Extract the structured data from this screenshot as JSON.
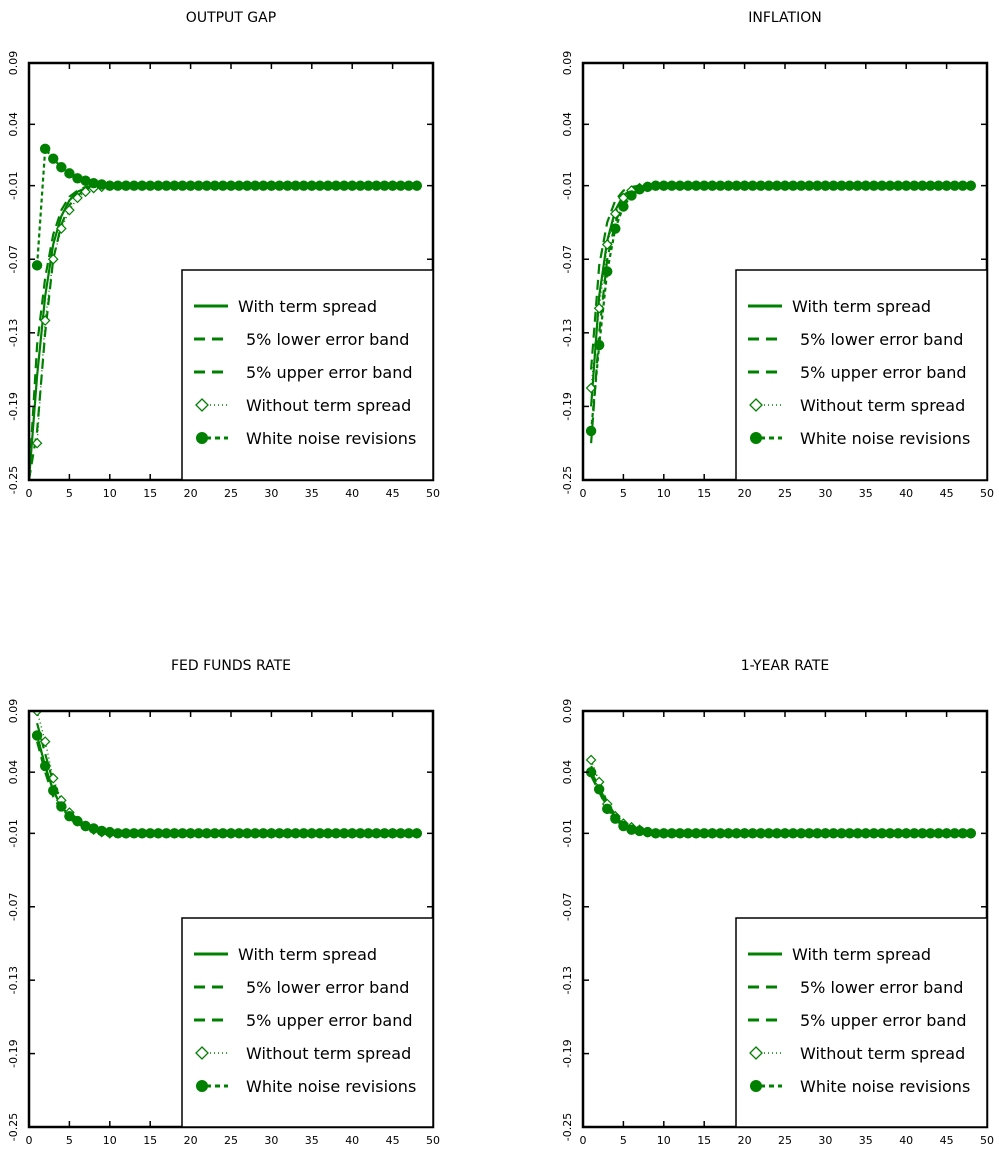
{
  "colors": {
    "series": "#008000",
    "axis": "#000000",
    "background": "#ffffff"
  },
  "chart_data": [
    {
      "type": "line",
      "title": "OUTPUT GAP",
      "xlim": [
        0,
        50
      ],
      "ylim": [
        -0.25,
        0.09
      ],
      "xticks": [
        "0",
        "5",
        "10",
        "15",
        "20",
        "25",
        "30",
        "35",
        "40",
        "45",
        "50"
      ],
      "yticks": [
        "-0.25",
        "-0.19",
        "-0.13",
        "-0.07",
        "-0.01",
        "0.04",
        "0.09"
      ],
      "legend": [
        "With term spread",
        "5% lower error band",
        "5% upper error band",
        "Without term spread",
        "White noise revisions"
      ],
      "legend_position": "lower-right",
      "series": [
        {
          "name": "With term spread",
          "x": [
            0,
            1,
            2,
            3,
            4,
            5,
            6,
            7,
            8,
            9,
            10,
            48
          ],
          "y": [
            -0.25,
            -0.165,
            -0.1,
            -0.058,
            -0.035,
            -0.022,
            -0.015,
            -0.012,
            -0.011,
            -0.01,
            -0.01,
            -0.01
          ]
        },
        {
          "name": "5% lower error band",
          "x": [
            0,
            1,
            2,
            3,
            4,
            5,
            6,
            7,
            8,
            9,
            10,
            48
          ],
          "y": [
            -0.25,
            -0.21,
            -0.13,
            -0.07,
            -0.042,
            -0.026,
            -0.018,
            -0.013,
            -0.011,
            -0.01,
            -0.01,
            -0.01
          ]
        },
        {
          "name": "5% upper error band",
          "x": [
            0,
            1,
            2,
            3,
            4,
            5,
            6,
            7,
            8,
            9,
            10,
            48
          ],
          "y": [
            -0.25,
            -0.14,
            -0.085,
            -0.05,
            -0.03,
            -0.019,
            -0.014,
            -0.011,
            -0.01,
            -0.01,
            -0.01,
            -0.01
          ]
        },
        {
          "name": "Without term spread",
          "x": [
            1,
            2,
            3,
            4,
            5,
            6,
            7,
            8,
            9,
            10,
            12,
            14,
            16,
            18,
            20,
            25,
            30,
            35,
            40,
            45,
            48
          ],
          "y": [
            -0.22,
            -0.12,
            -0.07,
            -0.045,
            -0.03,
            -0.02,
            -0.015,
            -0.012,
            -0.011,
            -0.01,
            -0.01,
            -0.01,
            -0.01,
            -0.01,
            -0.01,
            -0.01,
            -0.01,
            -0.01,
            -0.01,
            -0.01,
            -0.01
          ]
        },
        {
          "name": "White noise revisions",
          "x": [
            1,
            2,
            3,
            4,
            5,
            6,
            7,
            8,
            9,
            10,
            11,
            12,
            13,
            14,
            15,
            16,
            17,
            18,
            19,
            20,
            21,
            22,
            23,
            24,
            25,
            26,
            27,
            28,
            29,
            30,
            31,
            32,
            33,
            34,
            35,
            36,
            37,
            38,
            39,
            40,
            41,
            42,
            43,
            44,
            45,
            46,
            47,
            48
          ],
          "y": [
            -0.075,
            0.02,
            0.012,
            0.005,
            0.0,
            -0.004,
            -0.006,
            -0.008,
            -0.009,
            -0.01,
            -0.01,
            -0.01,
            -0.01,
            -0.01,
            -0.01,
            -0.01,
            -0.01,
            -0.01,
            -0.01,
            -0.01,
            -0.01,
            -0.01,
            -0.01,
            -0.01,
            -0.01,
            -0.01,
            -0.01,
            -0.01,
            -0.01,
            -0.01,
            -0.01,
            -0.01,
            -0.01,
            -0.01,
            -0.01,
            -0.01,
            -0.01,
            -0.01,
            -0.01,
            -0.01,
            -0.01,
            -0.01,
            -0.01,
            -0.01,
            -0.01,
            -0.01,
            -0.01,
            -0.01
          ]
        }
      ]
    },
    {
      "type": "line",
      "title": "INFLATION",
      "xlim": [
        0,
        50
      ],
      "ylim": [
        -0.25,
        0.09
      ],
      "xticks": [
        "0",
        "5",
        "10",
        "15",
        "20",
        "25",
        "30",
        "35",
        "40",
        "45",
        "50"
      ],
      "yticks": [
        "-0.25",
        "-0.19",
        "-0.13",
        "-0.07",
        "-0.01",
        "0.04",
        "0.09"
      ],
      "legend": [
        "With term spread",
        "5% lower error band",
        "5% upper error band",
        "Without term spread",
        "White noise revisions"
      ],
      "legend_position": "lower-right",
      "series": [
        {
          "name": "With term spread",
          "x": [
            1,
            2,
            3,
            4,
            5,
            6,
            7,
            8,
            10,
            48
          ],
          "y": [
            -0.19,
            -0.1,
            -0.055,
            -0.03,
            -0.018,
            -0.013,
            -0.011,
            -0.01,
            -0.01,
            -0.01
          ]
        },
        {
          "name": "5% lower error band",
          "x": [
            1,
            2,
            3,
            4,
            5,
            6,
            7,
            8,
            10,
            48
          ],
          "y": [
            -0.22,
            -0.13,
            -0.07,
            -0.04,
            -0.024,
            -0.016,
            -0.012,
            -0.01,
            -0.01,
            -0.01
          ]
        },
        {
          "name": "5% upper error band",
          "x": [
            1,
            2,
            3,
            4,
            5,
            6,
            7,
            8,
            10,
            48
          ],
          "y": [
            -0.16,
            -0.075,
            -0.04,
            -0.022,
            -0.014,
            -0.011,
            -0.01,
            -0.01,
            -0.01,
            -0.01
          ]
        },
        {
          "name": "Without term spread",
          "x": [
            1,
            2,
            3,
            4,
            5,
            6,
            7,
            8,
            9,
            10,
            12,
            14,
            16,
            18,
            20,
            25,
            30,
            35,
            40,
            45,
            48
          ],
          "y": [
            -0.175,
            -0.11,
            -0.058,
            -0.033,
            -0.02,
            -0.014,
            -0.012,
            -0.011,
            -0.01,
            -0.01,
            -0.01,
            -0.01,
            -0.01,
            -0.01,
            -0.01,
            -0.01,
            -0.01,
            -0.01,
            -0.01,
            -0.01,
            -0.01
          ]
        },
        {
          "name": "White noise revisions",
          "x": [
            1,
            2,
            3,
            4,
            5,
            6,
            7,
            8,
            9,
            10,
            11,
            12,
            13,
            14,
            15,
            16,
            17,
            18,
            19,
            20,
            21,
            22,
            23,
            24,
            25,
            26,
            27,
            28,
            29,
            30,
            31,
            32,
            33,
            34,
            35,
            36,
            37,
            38,
            39,
            40,
            41,
            42,
            43,
            44,
            45,
            46,
            47,
            48
          ],
          "y": [
            -0.21,
            -0.14,
            -0.08,
            -0.045,
            -0.027,
            -0.018,
            -0.013,
            -0.011,
            -0.01,
            -0.01,
            -0.01,
            -0.01,
            -0.01,
            -0.01,
            -0.01,
            -0.01,
            -0.01,
            -0.01,
            -0.01,
            -0.01,
            -0.01,
            -0.01,
            -0.01,
            -0.01,
            -0.01,
            -0.01,
            -0.01,
            -0.01,
            -0.01,
            -0.01,
            -0.01,
            -0.01,
            -0.01,
            -0.01,
            -0.01,
            -0.01,
            -0.01,
            -0.01,
            -0.01,
            -0.01,
            -0.01,
            -0.01,
            -0.01,
            -0.01,
            -0.01,
            -0.01,
            -0.01,
            -0.01
          ]
        }
      ]
    },
    {
      "type": "line",
      "title": "FED FUNDS RATE",
      "xlim": [
        0,
        50
      ],
      "ylim": [
        -0.25,
        0.09
      ],
      "xticks": [
        "0",
        "5",
        "10",
        "15",
        "20",
        "25",
        "30",
        "35",
        "40",
        "45",
        "50"
      ],
      "yticks": [
        "-0.25",
        "-0.19",
        "-0.13",
        "-0.07",
        "-0.01",
        "0.04",
        "0.09"
      ],
      "legend": [
        "With term spread",
        "5% lower error band",
        "5% upper error band",
        "Without term spread",
        "White noise revisions"
      ],
      "legend_position": "lower-right",
      "series": [
        {
          "name": "With term spread",
          "x": [
            1,
            2,
            3,
            4,
            5,
            6,
            7,
            8,
            9,
            10,
            48
          ],
          "y": [
            0.07,
            0.045,
            0.025,
            0.012,
            0.004,
            0.0,
            -0.004,
            -0.006,
            -0.008,
            -0.01,
            -0.01
          ]
        },
        {
          "name": "5% lower error band",
          "x": [
            1,
            2,
            3,
            4,
            5,
            6,
            7,
            8,
            9,
            10,
            48
          ],
          "y": [
            0.065,
            0.04,
            0.02,
            0.009,
            0.002,
            -0.002,
            -0.005,
            -0.007,
            -0.009,
            -0.01,
            -0.01
          ]
        },
        {
          "name": "5% upper error band",
          "x": [
            1,
            2,
            3,
            4,
            5,
            6,
            7,
            8,
            9,
            10,
            48
          ],
          "y": [
            0.08,
            0.055,
            0.032,
            0.016,
            0.007,
            0.002,
            -0.003,
            -0.005,
            -0.008,
            -0.01,
            -0.01
          ]
        },
        {
          "name": "Without term spread",
          "x": [
            1,
            2,
            3,
            4,
            5,
            6,
            7,
            8,
            9,
            10,
            12,
            14,
            16,
            18,
            20,
            25,
            30,
            35,
            40,
            45,
            48
          ],
          "y": [
            0.09,
            0.065,
            0.035,
            0.017,
            0.007,
            0.0,
            -0.004,
            -0.007,
            -0.009,
            -0.01,
            -0.01,
            -0.01,
            -0.01,
            -0.01,
            -0.01,
            -0.01,
            -0.01,
            -0.01,
            -0.01,
            -0.01,
            -0.01
          ]
        },
        {
          "name": "White noise revisions",
          "x": [
            1,
            2,
            3,
            4,
            5,
            6,
            7,
            8,
            9,
            10,
            11,
            12,
            13,
            14,
            15,
            16,
            17,
            18,
            19,
            20,
            21,
            22,
            23,
            24,
            25,
            26,
            27,
            28,
            29,
            30,
            31,
            32,
            33,
            34,
            35,
            36,
            37,
            38,
            39,
            40,
            41,
            42,
            43,
            44,
            45,
            46,
            47,
            48
          ],
          "y": [
            0.07,
            0.045,
            0.025,
            0.012,
            0.004,
            0.0,
            -0.004,
            -0.006,
            -0.008,
            -0.009,
            -0.01,
            -0.01,
            -0.01,
            -0.01,
            -0.01,
            -0.01,
            -0.01,
            -0.01,
            -0.01,
            -0.01,
            -0.01,
            -0.01,
            -0.01,
            -0.01,
            -0.01,
            -0.01,
            -0.01,
            -0.01,
            -0.01,
            -0.01,
            -0.01,
            -0.01,
            -0.01,
            -0.01,
            -0.01,
            -0.01,
            -0.01,
            -0.01,
            -0.01,
            -0.01,
            -0.01,
            -0.01,
            -0.01,
            -0.01,
            -0.01,
            -0.01,
            -0.01,
            -0.01
          ]
        }
      ]
    },
    {
      "type": "line",
      "title": "1-YEAR RATE",
      "xlim": [
        0,
        50
      ],
      "ylim": [
        -0.25,
        0.09
      ],
      "xticks": [
        "0",
        "5",
        "10",
        "15",
        "20",
        "25",
        "30",
        "35",
        "40",
        "45",
        "50"
      ],
      "yticks": [
        "-0.25",
        "-0.19",
        "-0.13",
        "-0.07",
        "-0.01",
        "0.04",
        "0.09"
      ],
      "legend": [
        "With term spread",
        "5% lower error band",
        "5% upper error band",
        "Without term spread",
        "White noise revisions"
      ],
      "legend_position": "lower-right",
      "series": [
        {
          "name": "With term spread",
          "x": [
            1,
            2,
            3,
            4,
            5,
            6,
            7,
            8,
            10,
            48
          ],
          "y": [
            0.04,
            0.028,
            0.012,
            0.003,
            -0.003,
            -0.006,
            -0.008,
            -0.009,
            -0.01,
            -0.01
          ]
        },
        {
          "name": "5% lower error band",
          "x": [
            1,
            2,
            3,
            4,
            5,
            6,
            7,
            8,
            10,
            48
          ],
          "y": [
            0.037,
            0.024,
            0.01,
            0.002,
            -0.004,
            -0.007,
            -0.008,
            -0.009,
            -0.01,
            -0.01
          ]
        },
        {
          "name": "5% upper error band",
          "x": [
            1,
            2,
            3,
            4,
            5,
            6,
            7,
            8,
            10,
            48
          ],
          "y": [
            0.045,
            0.032,
            0.015,
            0.005,
            -0.002,
            -0.005,
            -0.007,
            -0.009,
            -0.01,
            -0.01
          ]
        },
        {
          "name": "Without term spread",
          "x": [
            1,
            2,
            3,
            4,
            5,
            6,
            7,
            8,
            9,
            10,
            12,
            14,
            16,
            18,
            20,
            25,
            30,
            35,
            40,
            45,
            48
          ],
          "y": [
            0.05,
            0.032,
            0.014,
            0.004,
            -0.002,
            -0.005,
            -0.007,
            -0.009,
            -0.01,
            -0.01,
            -0.01,
            -0.01,
            -0.01,
            -0.01,
            -0.01,
            -0.01,
            -0.01,
            -0.01,
            -0.01,
            -0.01,
            -0.01
          ]
        },
        {
          "name": "White noise revisions",
          "x": [
            1,
            2,
            3,
            4,
            5,
            6,
            7,
            8,
            9,
            10,
            11,
            12,
            13,
            14,
            15,
            16,
            17,
            18,
            19,
            20,
            21,
            22,
            23,
            24,
            25,
            26,
            27,
            28,
            29,
            30,
            31,
            32,
            33,
            34,
            35,
            36,
            37,
            38,
            39,
            40,
            41,
            42,
            43,
            44,
            45,
            46,
            47,
            48
          ],
          "y": [
            0.04,
            0.026,
            0.01,
            0.002,
            -0.004,
            -0.007,
            -0.008,
            -0.009,
            -0.01,
            -0.01,
            -0.01,
            -0.01,
            -0.01,
            -0.01,
            -0.01,
            -0.01,
            -0.01,
            -0.01,
            -0.01,
            -0.01,
            -0.01,
            -0.01,
            -0.01,
            -0.01,
            -0.01,
            -0.01,
            -0.01,
            -0.01,
            -0.01,
            -0.01,
            -0.01,
            -0.01,
            -0.01,
            -0.01,
            -0.01,
            -0.01,
            -0.01,
            -0.01,
            -0.01,
            -0.01,
            -0.01,
            -0.01,
            -0.01,
            -0.01,
            -0.01,
            -0.01,
            -0.01,
            -0.01
          ]
        }
      ]
    }
  ]
}
